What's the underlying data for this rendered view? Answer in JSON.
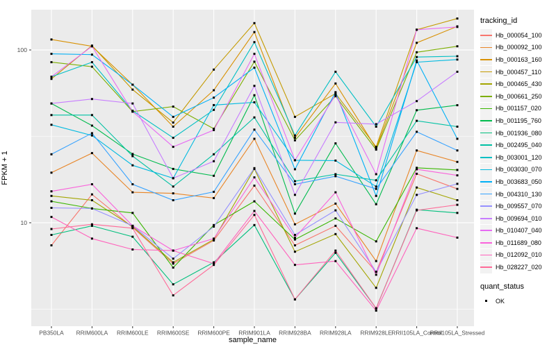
{
  "figure": {
    "panel_background": "#EBEBEB",
    "grid_color": "#FFFFFF",
    "point_color": "#000000",
    "tick_color": "#333333",
    "tick_label_color": "#4D4D4D",
    "legend_key_background": "#F2F2F2"
  },
  "axes": {
    "x_title": "sample_name",
    "y_title": "FPKM + 1",
    "y_scale": "log10",
    "y_major_ticks": [
      {
        "label": "100",
        "value": 100
      },
      {
        "label": "10",
        "value": 10
      }
    ],
    "y_minor_values": [
      31.62,
      3.162
    ]
  },
  "legend": {
    "tracking_title": "tracking_id",
    "quant_title": "quant_status",
    "quant_items": [
      {
        "label": "OK",
        "shape": "square",
        "color": "#000000"
      }
    ]
  },
  "chart_data": {
    "type": "line",
    "title": "",
    "xlabel": "sample_name",
    "ylabel": "FPKM + 1",
    "y_scale": "log10",
    "ylim": [
      2.52,
      171
    ],
    "grid": true,
    "legend_position": "right",
    "point_shape": "filled-square-black (quant_status OK)",
    "categories": [
      "PB350LA",
      "RRIM600LA",
      "RRIM600LE",
      "RRIM600SE",
      "RRIM600PE",
      "RRIM901LA",
      "RRIM928BA",
      "RRIM928LA",
      "RRIM928LE",
      "RRII105LA_Control",
      "RRII105LA_Stressed"
    ],
    "series": [
      {
        "name": "Hb_000054_100",
        "color": "#F8766D",
        "values": [
          7.4,
          14.6,
          9.4,
          5.8,
          7.9,
          16.4,
          7.4,
          9.6,
          5.2,
          19.2,
          15.7
        ]
      },
      {
        "name": "Hb_000092_100",
        "color": "#E88526",
        "values": [
          19.5,
          25.3,
          15.0,
          14.8,
          13.9,
          30.6,
          9.8,
          12.9,
          6.0,
          26.2,
          22.5
        ]
      },
      {
        "name": "Hb_000163_160",
        "color": "#D89000",
        "values": [
          115,
          105,
          63,
          36,
          58.5,
          127,
          31,
          64,
          27,
          110,
          137
        ]
      },
      {
        "name": "Hb_000457_110",
        "color": "#C49A00",
        "values": [
          68,
          106,
          59,
          38,
          77,
          143,
          41,
          56,
          27.5,
          131,
          152
        ]
      },
      {
        "name": "Hb_000465_430",
        "color": "#A3A500",
        "values": [
          14.3,
          13.5,
          9.5,
          5.9,
          8.0,
          20.5,
          6.8,
          8.6,
          4.2,
          16.0,
          13.5
        ]
      },
      {
        "name": "Hb_000661_250",
        "color": "#7CAE00",
        "values": [
          85,
          80,
          44,
          47,
          35,
          85.5,
          30,
          54,
          26.5,
          97,
          105
        ]
      },
      {
        "name": "Hb_001157_020",
        "color": "#39B600",
        "values": [
          13.3,
          12.1,
          11.4,
          5.5,
          9.7,
          13.3,
          8.0,
          10.6,
          7.8,
          20.8,
          20.2
        ]
      },
      {
        "name": "Hb_001195_760",
        "color": "#00BB4E",
        "values": [
          49,
          36.5,
          25,
          20.5,
          18.7,
          54.7,
          11.3,
          28.8,
          12.8,
          44.8,
          47.9
        ]
      },
      {
        "name": "Hb_001936_080",
        "color": "#00BF7D",
        "values": [
          8.5,
          9.6,
          8.3,
          4.4,
          5.9,
          9.7,
          3.6,
          6.7,
          3.2,
          11.9,
          11.4
        ]
      },
      {
        "name": "Hb_002495_040",
        "color": "#00C1A3",
        "values": [
          42,
          42,
          24.3,
          16.2,
          24.9,
          40.7,
          17.4,
          19.1,
          17.6,
          38.9,
          36
        ]
      },
      {
        "name": "Hb_003001_120",
        "color": "#00BFC4",
        "values": [
          70,
          85,
          44.5,
          31,
          45,
          111,
          32,
          74.8,
          36,
          91,
          92
        ]
      },
      {
        "name": "Hb_003030_070",
        "color": "#00BAE0",
        "values": [
          36.9,
          32,
          21.5,
          18.1,
          48,
          49.8,
          23,
          22.9,
          16.2,
          85,
          88
        ]
      },
      {
        "name": "Hb_003683_050",
        "color": "#00B0F6",
        "values": [
          95,
          94,
          63,
          41,
          53,
          79,
          20.4,
          57,
          14.3,
          87,
          30.6
        ]
      },
      {
        "name": "Hb_004310_130",
        "color": "#35A2FF",
        "values": [
          24.9,
          33,
          16.7,
          13.5,
          15.1,
          34.6,
          16.7,
          18.6,
          15.7,
          33.6,
          26.2
        ]
      },
      {
        "name": "Hb_009557_070",
        "color": "#9590FF",
        "values": [
          12.2,
          12.1,
          9.6,
          6.2,
          9.5,
          20.7,
          8.5,
          11.8,
          5.2,
          14.5,
          16.8
        ]
      },
      {
        "name": "Hb_009694_010",
        "color": "#C77CFF",
        "values": [
          49,
          52,
          49,
          18.1,
          22.7,
          62,
          14.5,
          38.1,
          37.2,
          50.6,
          74.8
        ]
      },
      {
        "name": "Hb_010407_040",
        "color": "#E76BF3",
        "values": [
          70,
          105,
          44,
          27.5,
          34.4,
          95,
          23,
          55,
          19.1,
          131,
          136
        ]
      },
      {
        "name": "Hb_011689_080",
        "color": "#FA62DB",
        "values": [
          15.2,
          16.7,
          9.6,
          6.9,
          8.1,
          18.3,
          8.2,
          15,
          5.0,
          20.4,
          18.8
        ]
      },
      {
        "name": "Hb_012092_010",
        "color": "#FF62BC",
        "values": [
          10.8,
          8.1,
          7.0,
          6.9,
          5.8,
          11.7,
          5.7,
          6.0,
          3.1,
          9.3,
          8.2
        ]
      },
      {
        "name": "Hb_028227_020",
        "color": "#FF6A98",
        "values": [
          9.2,
          9.8,
          9.3,
          3.8,
          5.7,
          11.1,
          3.6,
          6.9,
          3.2,
          11.8,
          12.7
        ]
      }
    ]
  }
}
